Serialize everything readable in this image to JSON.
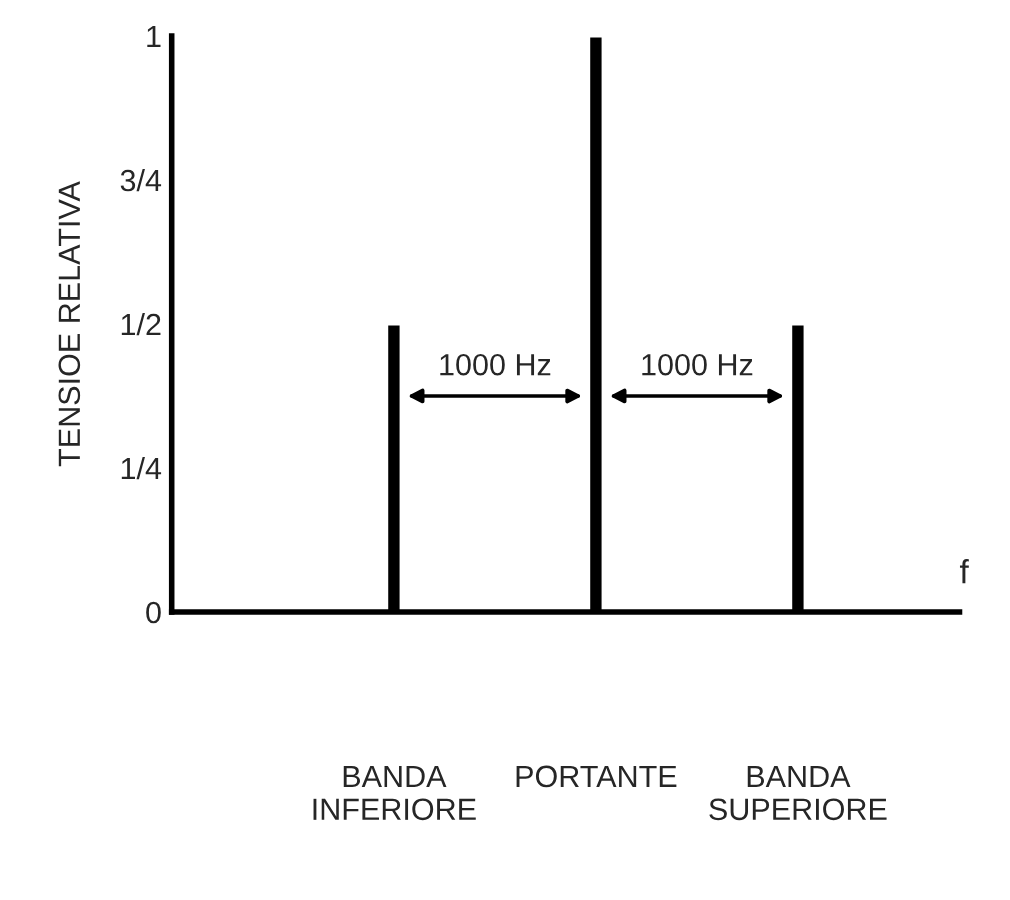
{
  "chart_data": {
    "type": "bar",
    "ylabel": "TENSIOE RELATIVA",
    "xlabel": "f",
    "categories": [
      "BANDA\nINFERIORE",
      "PORTANTE",
      "BANDA\nSUPERIORE"
    ],
    "values": [
      0.5,
      1,
      0.5
    ],
    "color": "#000000",
    "ylim": [
      0,
      1
    ],
    "yticks": [
      {
        "value": 0,
        "label": "0"
      },
      {
        "value": 0.25,
        "label": "1/4"
      },
      {
        "value": 0.5,
        "label": "1/2"
      },
      {
        "value": 0.75,
        "label": "3/4"
      },
      {
        "value": 1,
        "label": "1"
      }
    ],
    "annotations": [
      "1000 Hz",
      "1000 Hz"
    ],
    "grid": false,
    "legend": false
  }
}
